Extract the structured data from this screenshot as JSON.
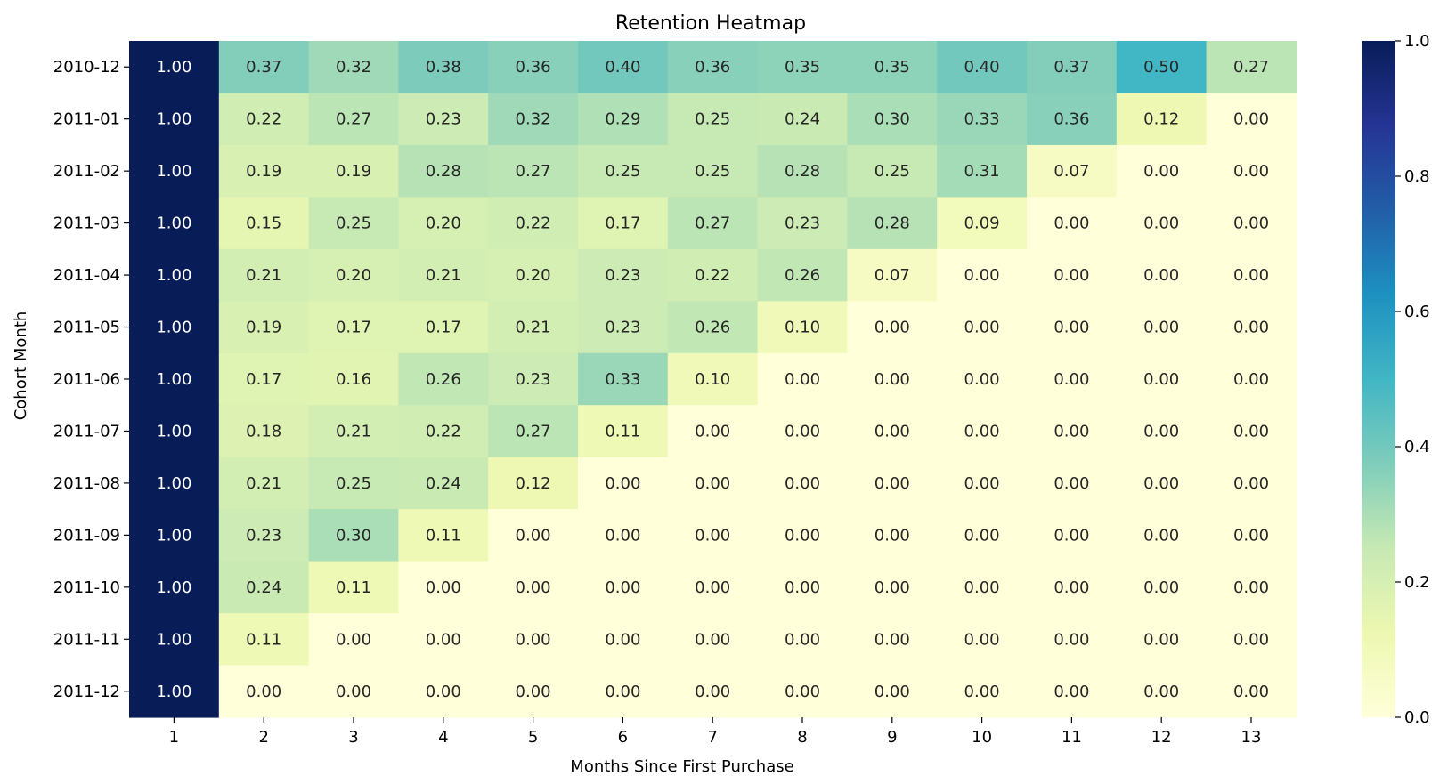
{
  "chart_data": {
    "type": "heatmap",
    "title": "Retention Heatmap",
    "xlabel": "Months Since First Purchase",
    "ylabel": "Cohort Month",
    "x_categories": [
      "1",
      "2",
      "3",
      "4",
      "5",
      "6",
      "7",
      "8",
      "9",
      "10",
      "11",
      "12",
      "13"
    ],
    "y_categories": [
      "2010-12",
      "2011-01",
      "2011-02",
      "2011-03",
      "2011-04",
      "2011-05",
      "2011-06",
      "2011-07",
      "2011-08",
      "2011-09",
      "2011-10",
      "2011-11",
      "2011-12"
    ],
    "values": [
      [
        1.0,
        0.37,
        0.32,
        0.38,
        0.36,
        0.4,
        0.36,
        0.35,
        0.35,
        0.4,
        0.37,
        0.5,
        0.27
      ],
      [
        1.0,
        0.22,
        0.27,
        0.23,
        0.32,
        0.29,
        0.25,
        0.24,
        0.3,
        0.33,
        0.36,
        0.12,
        0.0
      ],
      [
        1.0,
        0.19,
        0.19,
        0.28,
        0.27,
        0.25,
        0.25,
        0.28,
        0.25,
        0.31,
        0.07,
        0.0,
        0.0
      ],
      [
        1.0,
        0.15,
        0.25,
        0.2,
        0.22,
        0.17,
        0.27,
        0.23,
        0.28,
        0.09,
        0.0,
        0.0,
        0.0
      ],
      [
        1.0,
        0.21,
        0.2,
        0.21,
        0.2,
        0.23,
        0.22,
        0.26,
        0.07,
        0.0,
        0.0,
        0.0,
        0.0
      ],
      [
        1.0,
        0.19,
        0.17,
        0.17,
        0.21,
        0.23,
        0.26,
        0.1,
        0.0,
        0.0,
        0.0,
        0.0,
        0.0
      ],
      [
        1.0,
        0.17,
        0.16,
        0.26,
        0.23,
        0.33,
        0.1,
        0.0,
        0.0,
        0.0,
        0.0,
        0.0,
        0.0
      ],
      [
        1.0,
        0.18,
        0.21,
        0.22,
        0.27,
        0.11,
        0.0,
        0.0,
        0.0,
        0.0,
        0.0,
        0.0,
        0.0
      ],
      [
        1.0,
        0.21,
        0.25,
        0.24,
        0.12,
        0.0,
        0.0,
        0.0,
        0.0,
        0.0,
        0.0,
        0.0,
        0.0
      ],
      [
        1.0,
        0.23,
        0.3,
        0.11,
        0.0,
        0.0,
        0.0,
        0.0,
        0.0,
        0.0,
        0.0,
        0.0,
        0.0
      ],
      [
        1.0,
        0.24,
        0.11,
        0.0,
        0.0,
        0.0,
        0.0,
        0.0,
        0.0,
        0.0,
        0.0,
        0.0,
        0.0
      ],
      [
        1.0,
        0.11,
        0.0,
        0.0,
        0.0,
        0.0,
        0.0,
        0.0,
        0.0,
        0.0,
        0.0,
        0.0,
        0.0
      ],
      [
        1.0,
        0.0,
        0.0,
        0.0,
        0.0,
        0.0,
        0.0,
        0.0,
        0.0,
        0.0,
        0.0,
        0.0,
        0.0
      ]
    ],
    "value_format": "0.00",
    "colormap": "YlGnBu",
    "colorbar": {
      "range": [
        0.0,
        1.0
      ],
      "ticks": [
        "0.0",
        "0.2",
        "0.4",
        "0.6",
        "0.8",
        "1.0"
      ]
    }
  }
}
